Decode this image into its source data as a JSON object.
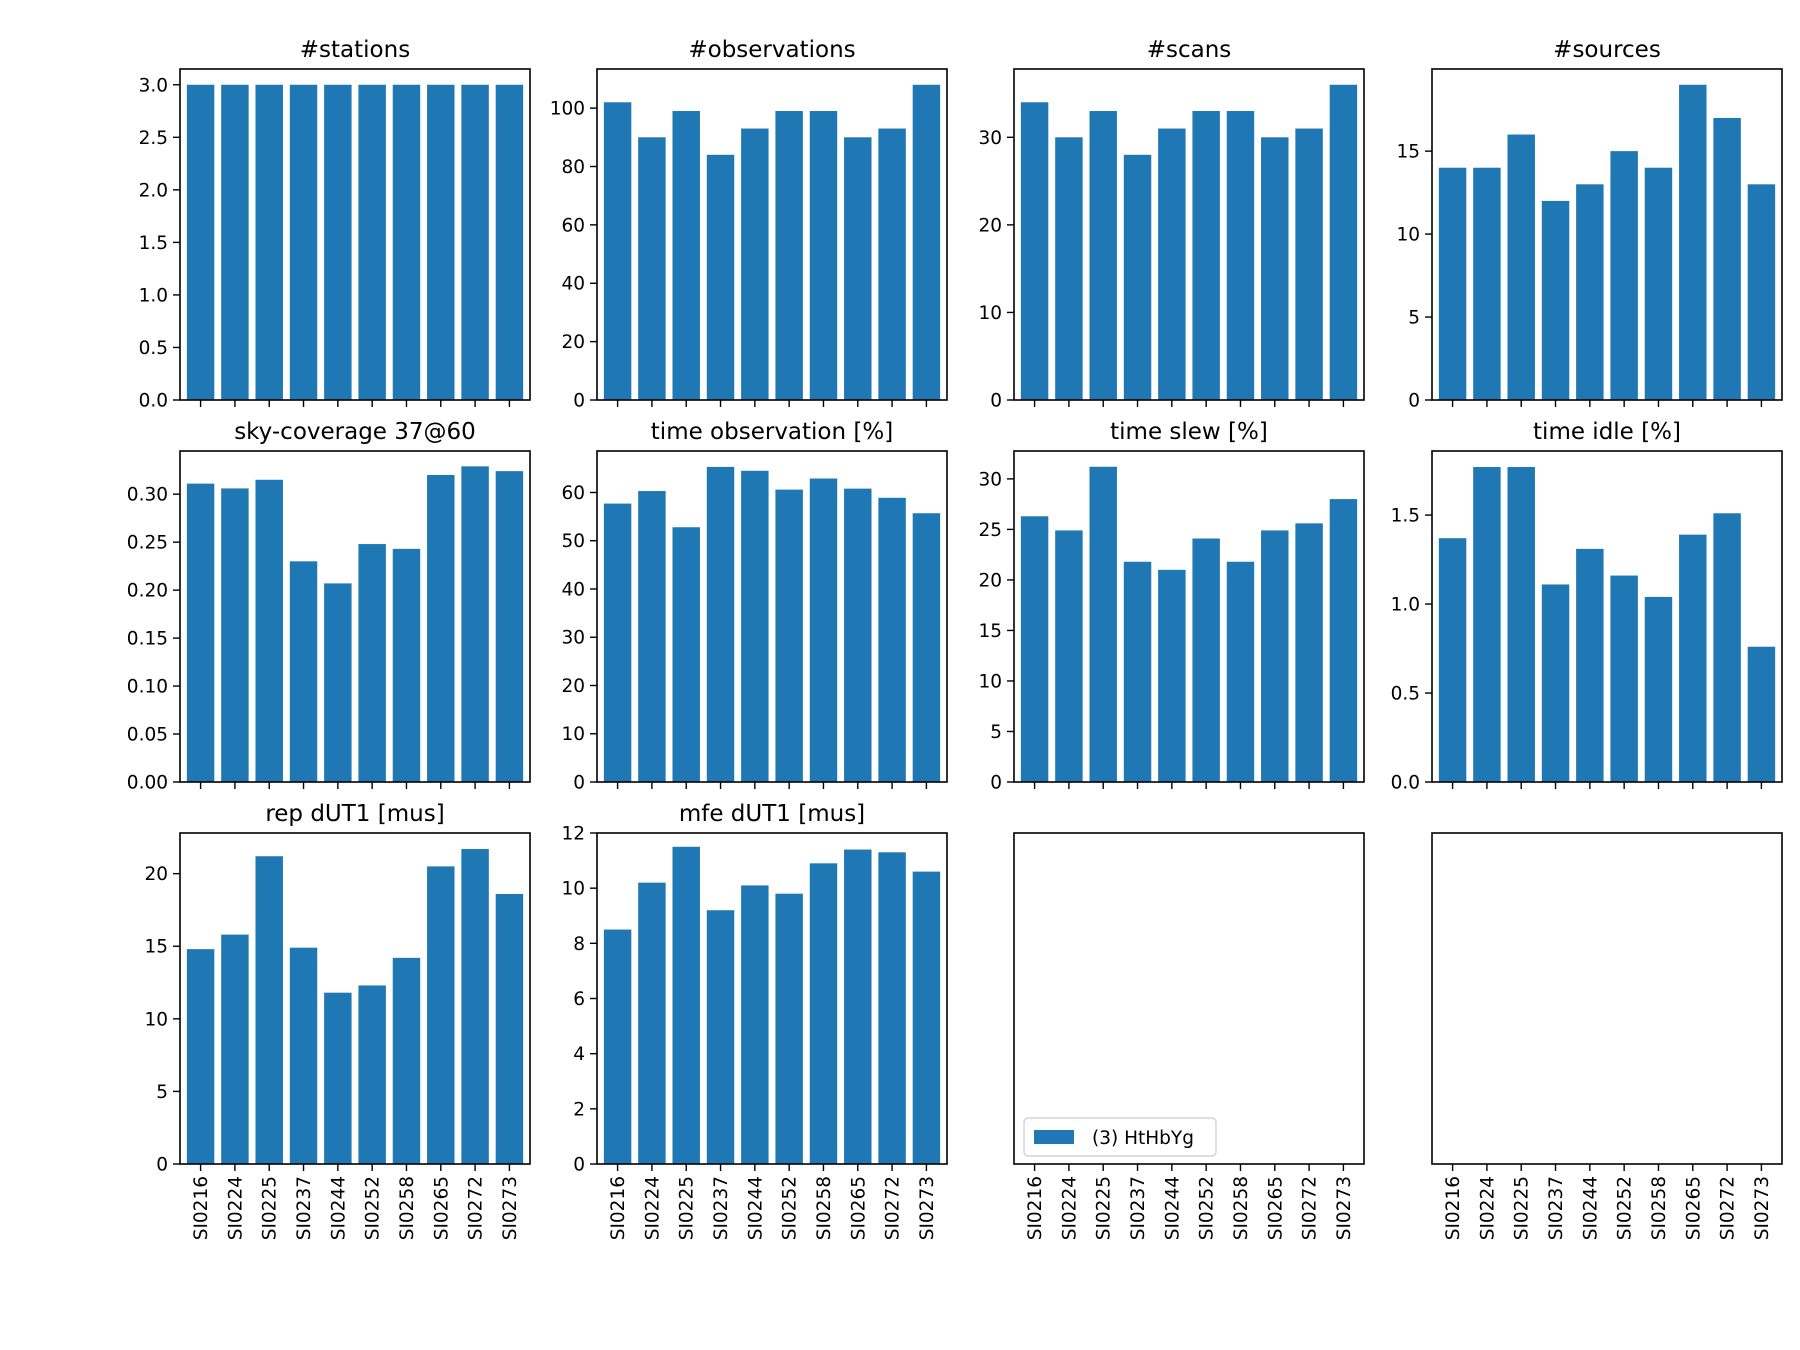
{
  "chart_data": [
    {
      "type": "bar",
      "title": "#stations",
      "categories": [
        "SI0216",
        "SI0224",
        "SI0225",
        "SI0237",
        "SI0244",
        "SI0252",
        "SI0258",
        "SI0265",
        "SI0272",
        "SI0273"
      ],
      "series": [
        {
          "values": [
            3,
            3,
            3,
            3,
            3,
            3,
            3,
            3,
            3,
            3
          ]
        }
      ],
      "ylim": [
        0,
        3.15
      ],
      "yticks": [
        "0.0",
        "0.5",
        "1.0",
        "1.5",
        "2.0",
        "2.5",
        "3.0"
      ],
      "show_xticklabels": false
    },
    {
      "type": "bar",
      "title": "#observations",
      "categories": [
        "SI0216",
        "SI0224",
        "SI0225",
        "SI0237",
        "SI0244",
        "SI0252",
        "SI0258",
        "SI0265",
        "SI0272",
        "SI0273"
      ],
      "series": [
        {
          "values": [
            102,
            90,
            99,
            84,
            93,
            99,
            99,
            90,
            93,
            108
          ]
        }
      ],
      "ylim": [
        0,
        113.4
      ],
      "yticks": [
        "0",
        "20",
        "40",
        "60",
        "80",
        "100"
      ],
      "show_xticklabels": false
    },
    {
      "type": "bar",
      "title": "#scans",
      "categories": [
        "SI0216",
        "SI0224",
        "SI0225",
        "SI0237",
        "SI0244",
        "SI0252",
        "SI0258",
        "SI0265",
        "SI0272",
        "SI0273"
      ],
      "series": [
        {
          "values": [
            34,
            30,
            33,
            28,
            31,
            33,
            33,
            30,
            31,
            36
          ]
        }
      ],
      "ylim": [
        0,
        37.8
      ],
      "yticks": [
        "0",
        "10",
        "20",
        "30"
      ],
      "show_xticklabels": false
    },
    {
      "type": "bar",
      "title": "#sources",
      "categories": [
        "SI0216",
        "SI0224",
        "SI0225",
        "SI0237",
        "SI0244",
        "SI0252",
        "SI0258",
        "SI0265",
        "SI0272",
        "SI0273"
      ],
      "series": [
        {
          "values": [
            14,
            14,
            16,
            12,
            13,
            15,
            14,
            19,
            17,
            13
          ]
        }
      ],
      "ylim": [
        0,
        19.95
      ],
      "yticks": [
        "0",
        "5",
        "10",
        "15"
      ],
      "show_xticklabels": false
    },
    {
      "type": "bar",
      "title": "sky-coverage 37@60",
      "categories": [
        "SI0216",
        "SI0224",
        "SI0225",
        "SI0237",
        "SI0244",
        "SI0252",
        "SI0258",
        "SI0265",
        "SI0272",
        "SI0273"
      ],
      "series": [
        {
          "values": [
            0.311,
            0.306,
            0.315,
            0.23,
            0.207,
            0.248,
            0.243,
            0.32,
            0.329,
            0.324
          ]
        }
      ],
      "ylim": [
        0,
        0.345
      ],
      "yticks": [
        "0.00",
        "0.05",
        "0.10",
        "0.15",
        "0.20",
        "0.25",
        "0.30"
      ],
      "show_xticklabels": false
    },
    {
      "type": "bar",
      "title": "time observation [%]",
      "categories": [
        "SI0216",
        "SI0224",
        "SI0225",
        "SI0237",
        "SI0244",
        "SI0252",
        "SI0258",
        "SI0265",
        "SI0272",
        "SI0273"
      ],
      "series": [
        {
          "values": [
            57.7,
            60.3,
            52.8,
            65.3,
            64.5,
            60.6,
            62.9,
            60.8,
            58.9,
            55.7
          ]
        }
      ],
      "ylim": [
        0,
        68.6
      ],
      "yticks": [
        "0",
        "10",
        "20",
        "30",
        "40",
        "50",
        "60"
      ],
      "show_xticklabels": false
    },
    {
      "type": "bar",
      "title": "time slew [%]",
      "categories": [
        "SI0216",
        "SI0224",
        "SI0225",
        "SI0237",
        "SI0244",
        "SI0252",
        "SI0258",
        "SI0265",
        "SI0272",
        "SI0273"
      ],
      "series": [
        {
          "values": [
            26.3,
            24.9,
            31.2,
            21.8,
            21.0,
            24.1,
            21.8,
            24.9,
            25.6,
            28.0
          ]
        }
      ],
      "ylim": [
        0,
        32.76
      ],
      "yticks": [
        "0",
        "5",
        "10",
        "15",
        "20",
        "25",
        "30"
      ],
      "show_xticklabels": false
    },
    {
      "type": "bar",
      "title": "time idle [%]",
      "categories": [
        "SI0216",
        "SI0224",
        "SI0225",
        "SI0237",
        "SI0244",
        "SI0252",
        "SI0258",
        "SI0265",
        "SI0272",
        "SI0273"
      ],
      "series": [
        {
          "values": [
            1.37,
            1.77,
            1.77,
            1.11,
            1.31,
            1.16,
            1.04,
            1.39,
            1.51,
            0.76
          ]
        }
      ],
      "ylim": [
        0,
        1.86
      ],
      "yticks": [
        "0.0",
        "0.5",
        "1.0",
        "1.5"
      ],
      "show_xticklabels": false
    },
    {
      "type": "bar",
      "title": "rep dUT1 [mus]",
      "categories": [
        "SI0216",
        "SI0224",
        "SI0225",
        "SI0237",
        "SI0244",
        "SI0252",
        "SI0258",
        "SI0265",
        "SI0272",
        "SI0273"
      ],
      "series": [
        {
          "values": [
            14.8,
            15.8,
            21.2,
            14.9,
            11.8,
            12.3,
            14.2,
            20.5,
            21.7,
            18.6
          ]
        }
      ],
      "ylim": [
        0,
        22.8
      ],
      "yticks": [
        "0",
        "5",
        "10",
        "15",
        "20"
      ],
      "show_xticklabels": true
    },
    {
      "type": "bar",
      "title": "mfe dUT1 [mus]",
      "categories": [
        "SI0216",
        "SI0224",
        "SI0225",
        "SI0237",
        "SI0244",
        "SI0252",
        "SI0258",
        "SI0265",
        "SI0272",
        "SI0273"
      ],
      "series": [
        {
          "values": [
            8.5,
            10.2,
            11.5,
            9.2,
            10.1,
            9.8,
            10.9,
            11.4,
            11.3,
            10.6
          ]
        }
      ],
      "ylim": [
        0,
        12.0
      ],
      "yticks": [
        "0",
        "2",
        "4",
        "6",
        "8",
        "10",
        "12"
      ],
      "show_xticklabels": true
    },
    {
      "type": "bar",
      "title": "",
      "categories": [
        "SI0216",
        "SI0224",
        "SI0225",
        "SI0237",
        "SI0244",
        "SI0252",
        "SI0258",
        "SI0265",
        "SI0272",
        "SI0273"
      ],
      "series": [],
      "yticks": [],
      "show_xticklabels": true,
      "legend": {
        "label": "(3) HtHbYg",
        "color": "#1f77b4",
        "location": "lower-left"
      }
    },
    {
      "type": "bar",
      "title": "",
      "categories": [
        "SI0216",
        "SI0224",
        "SI0225",
        "SI0237",
        "SI0244",
        "SI0252",
        "SI0258",
        "SI0265",
        "SI0272",
        "SI0273"
      ],
      "series": [],
      "yticks": [],
      "show_xticklabels": true
    }
  ],
  "colors": {
    "bar": "#1f77b4"
  }
}
